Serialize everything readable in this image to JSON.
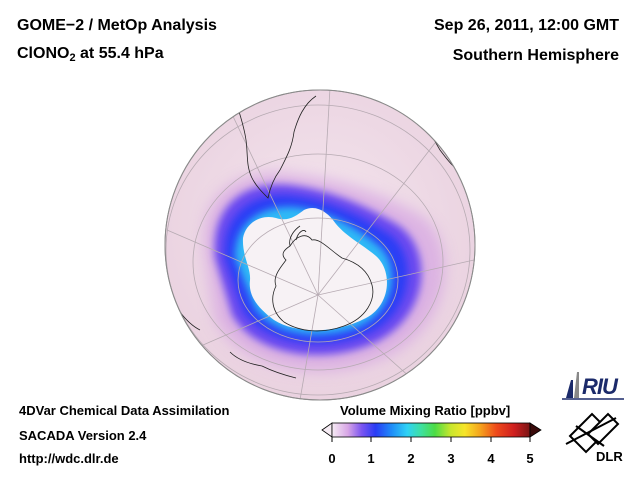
{
  "header": {
    "title_line1": "GOME−2 / MetOp Analysis",
    "species_main": "ClONO",
    "species_sub": "2",
    "species_rest": " at 55.4 hPa",
    "date": "Sep 26, 2011, 12:00 GMT",
    "region": "Southern Hemisphere"
  },
  "footer": {
    "line1": "4DVar Chemical Data Assimilation",
    "line2": "SACADA Version 2.4",
    "line3": "http://wdc.dlr.de"
  },
  "colorbar": {
    "title": "Volume Mixing Ratio [ppbv]",
    "ticks": [
      "0",
      "1",
      "2",
      "3",
      "4",
      "5"
    ],
    "colors": [
      "#f6ecf4",
      "#d8a6e6",
      "#7b55f0",
      "#2a3cf5",
      "#1f8cf8",
      "#2fd2f5",
      "#3ee0a0",
      "#4ddc45",
      "#c9e62d",
      "#f6e52a",
      "#f5a21d",
      "#ee4a1b",
      "#cf1f1f",
      "#7a1515"
    ]
  },
  "logos": {
    "riu": "RIU",
    "dlr": "DLR"
  }
}
